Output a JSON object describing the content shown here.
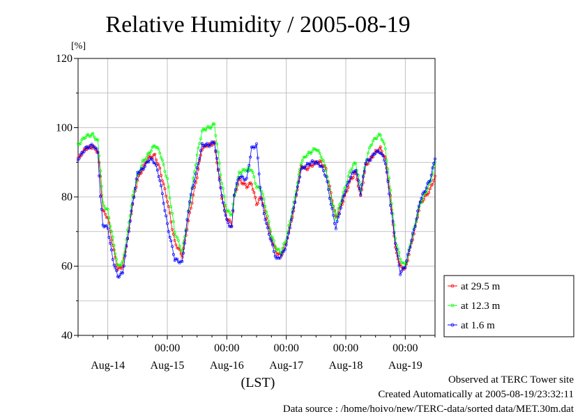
{
  "chart_data": {
    "type": "line",
    "title": "Relative Humidity / 2005-08-19",
    "ylabel": "[%]",
    "xlabel": "(LST)",
    "ylim": [
      40,
      120
    ],
    "y_ticks": [
      40,
      60,
      80,
      100,
      120
    ],
    "x_range_hours": [
      -12,
      132
    ],
    "x_time_ticks": [
      "00:00",
      "00:00",
      "00:00",
      "00:00",
      "00:00"
    ],
    "x_date_ticks": [
      "Aug-14",
      "Aug-15",
      "Aug-16",
      "Aug-17",
      "Aug-18",
      "Aug-19"
    ],
    "grid": true,
    "legend_position": "bottom-right, outside plot",
    "x_hours": [
      -12,
      -9,
      -6,
      -4,
      -3,
      -2,
      0,
      2,
      4,
      6,
      8,
      10,
      12,
      14,
      16,
      17,
      19,
      21,
      24,
      27,
      30,
      33,
      36,
      38,
      40,
      41,
      43,
      46,
      48,
      50,
      51,
      53,
      56,
      58,
      60,
      62,
      64,
      66,
      68,
      70,
      72,
      75,
      78,
      80,
      82,
      84,
      86,
      88,
      90,
      92,
      95,
      98,
      100,
      102,
      104,
      106,
      108,
      110,
      112,
      114,
      116,
      118,
      120,
      122,
      124,
      126,
      128,
      130,
      132
    ],
    "series": [
      {
        "name": "at 29.5 m",
        "color": "#ff0000",
        "values": [
          91,
          94,
          94.5,
          93,
          86,
          76,
          74,
          66,
          59,
          60,
          68,
          78,
          85,
          88,
          91,
          91.5,
          92,
          88,
          79,
          67,
          63,
          75,
          86,
          94,
          95,
          95,
          95.5,
          80,
          74,
          72,
          80,
          85,
          83,
          84,
          78,
          80,
          74,
          68,
          64,
          63,
          67,
          76,
          89,
          88,
          89,
          90,
          90,
          88,
          81,
          74,
          79,
          85,
          87,
          80,
          89,
          91,
          93,
          94,
          91,
          80,
          65,
          60,
          59,
          65,
          71,
          78,
          80,
          82,
          86
        ]
      },
      {
        "name": "at 12.3 m",
        "color": "#00ff00",
        "values": [
          95,
          97.5,
          98,
          96,
          88,
          78,
          76,
          68,
          60,
          61,
          70,
          80,
          86,
          90,
          92,
          93,
          95,
          93,
          85,
          70,
          64,
          78,
          92,
          99,
          100,
          100,
          101,
          84,
          76,
          75,
          80,
          87,
          88,
          88,
          83,
          82,
          76,
          69,
          65,
          64,
          68,
          78,
          90,
          92,
          93,
          94,
          92,
          88,
          80,
          74,
          81,
          88,
          90,
          82,
          90,
          95,
          97,
          98,
          94,
          82,
          68,
          62,
          60,
          66,
          72,
          78,
          81,
          84,
          90
        ]
      },
      {
        "name": "at 1.6 m",
        "color": "#0000ff",
        "values": [
          91,
          94,
          95,
          93,
          80,
          72,
          71,
          62,
          57,
          58,
          68,
          78,
          87,
          88,
          90,
          91,
          90,
          85,
          72,
          62,
          61,
          79,
          88,
          95,
          95,
          95,
          96,
          80,
          73,
          71,
          81,
          86,
          85,
          94,
          95,
          79,
          72,
          67,
          62,
          63,
          66,
          77,
          88,
          89,
          90,
          90,
          89,
          86,
          78,
          71,
          80,
          86,
          88,
          81,
          90,
          91,
          93,
          93,
          90,
          78,
          67,
          58,
          60,
          66,
          72,
          79,
          82,
          85,
          91
        ]
      }
    ]
  },
  "legend": {
    "items": [
      "at 29.5 m",
      "at 12.3 m",
      "at 1.6 m"
    ]
  },
  "footer": {
    "line1": "Observed at TERC Tower site",
    "line2": "Created Automatically at 2005-08-19/23:32:11",
    "line3": "Data source : /home/hoivo/new/TERC-data/sorted  data/MET.30m.dat"
  }
}
